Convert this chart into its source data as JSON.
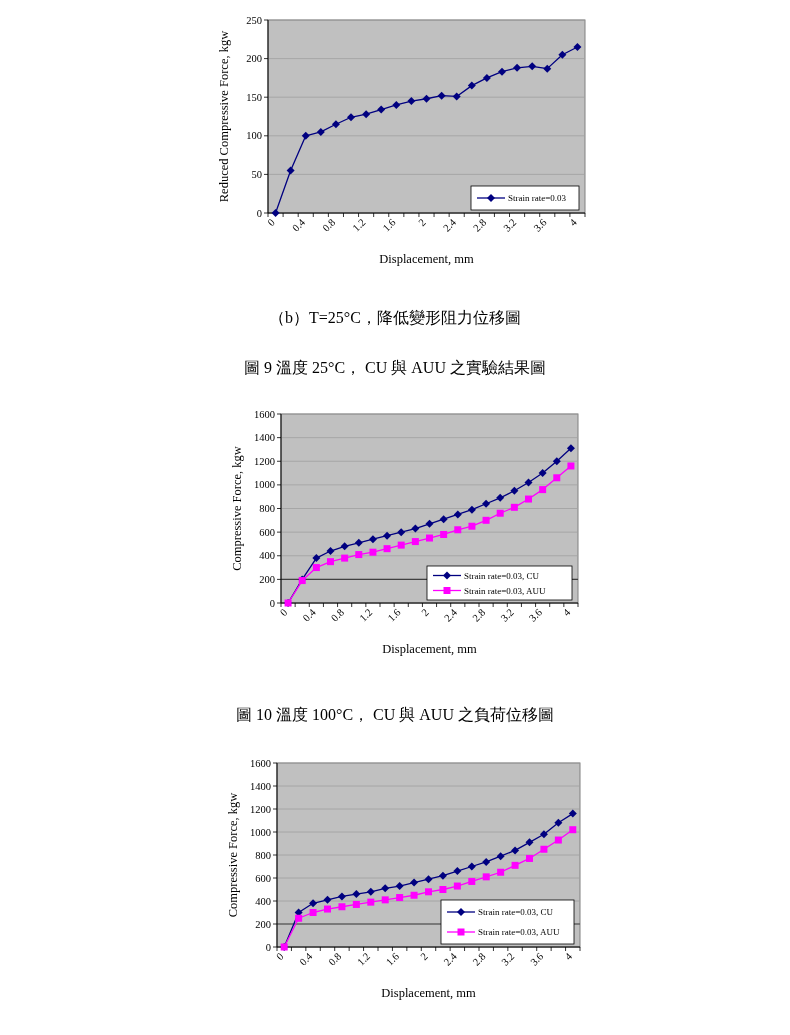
{
  "chart_data": [
    {
      "type": "line",
      "ylabel": "Reduced Compressive Force, kgw",
      "xlabel": "Displacement, mm",
      "categories": [
        "0",
        null,
        "0.4",
        null,
        "0.8",
        null,
        "1.2",
        null,
        "1.6",
        null,
        "2",
        null,
        "2.4",
        null,
        "2.8",
        null,
        "3.2",
        null,
        "3.6",
        null,
        "4"
      ],
      "ylim": [
        0,
        250
      ],
      "yticks": [
        0,
        50,
        100,
        150,
        200,
        250
      ],
      "grid": "y",
      "legend": "bottom right",
      "series": [
        {
          "name": "Strain rate=0.03",
          "color": "#000080",
          "marker": "diamond",
          "values": [
            0,
            55,
            100,
            105,
            115,
            124,
            128,
            134,
            140,
            145,
            148,
            152,
            151,
            165,
            175,
            183,
            188,
            190,
            187,
            205,
            215
          ]
        }
      ],
      "annotations": [
        "（b）T=25°C，降低變形阻力位移圖",
        "圖 9 溫度 25°C， CU 與 AUU 之實驗結果圖"
      ]
    },
    {
      "type": "line",
      "ylabel": "Compressive Force, kgw",
      "xlabel": "Displacement, mm",
      "categories": [
        "0",
        null,
        "0.4",
        null,
        "0.8",
        null,
        "1.2",
        null,
        "1.6",
        null,
        "2",
        null,
        "2.4",
        null,
        "2.8",
        null,
        "3.2",
        null,
        "3.6",
        null,
        "4"
      ],
      "ylim": [
        0,
        1600
      ],
      "yticks": [
        0,
        200,
        400,
        600,
        800,
        1000,
        1200,
        1400,
        1600
      ],
      "grid": "y",
      "legend": "bottom right",
      "ref_lines": [
        {
          "axis": "y",
          "value": 200,
          "color": "#404040"
        }
      ],
      "series": [
        {
          "name": "Strain rate=0.03, CU",
          "color": "#000080",
          "marker": "diamond",
          "values": [
            0,
            200,
            380,
            440,
            480,
            510,
            540,
            570,
            600,
            630,
            670,
            710,
            750,
            790,
            840,
            890,
            950,
            1020,
            1100,
            1200,
            1310
          ]
        },
        {
          "name": "Strain rate=0.03, AUU",
          "color": "#ff00ff",
          "marker": "square",
          "values": [
            0,
            190,
            300,
            350,
            380,
            410,
            430,
            460,
            490,
            520,
            550,
            580,
            620,
            650,
            700,
            760,
            810,
            880,
            960,
            1060,
            1160
          ]
        }
      ],
      "annotations": [
        "圖 10 溫度 100°C， CU 與 AUU 之負荷位移圖"
      ]
    },
    {
      "type": "line",
      "ylabel": "Compressive Force, kgw",
      "xlabel": "Displacement, mm",
      "categories": [
        "0",
        null,
        "0.4",
        null,
        "0.8",
        null,
        "1.2",
        null,
        "1.6",
        null,
        "2",
        null,
        "2.4",
        null,
        "2.8",
        null,
        "3.2",
        null,
        "3.6",
        null,
        "4"
      ],
      "ylim": [
        0,
        1600
      ],
      "yticks": [
        0,
        200,
        400,
        600,
        800,
        1000,
        1200,
        1400,
        1600
      ],
      "grid": "y",
      "legend": "bottom right",
      "ref_lines": [
        {
          "axis": "y",
          "value": 200,
          "color": "#404040"
        }
      ],
      "series": [
        {
          "name": "Strain rate=0.03, CU",
          "color": "#000080",
          "marker": "diamond",
          "values": [
            0,
            300,
            380,
            410,
            440,
            460,
            480,
            510,
            530,
            560,
            590,
            620,
            660,
            700,
            740,
            790,
            840,
            910,
            980,
            1080,
            1160
          ]
        },
        {
          "name": "Strain rate=0.03, AUU",
          "color": "#ff00ff",
          "marker": "square",
          "values": [
            0,
            250,
            300,
            330,
            350,
            370,
            390,
            410,
            430,
            450,
            480,
            500,
            530,
            570,
            610,
            650,
            710,
            770,
            850,
            930,
            1020
          ]
        }
      ]
    }
  ]
}
